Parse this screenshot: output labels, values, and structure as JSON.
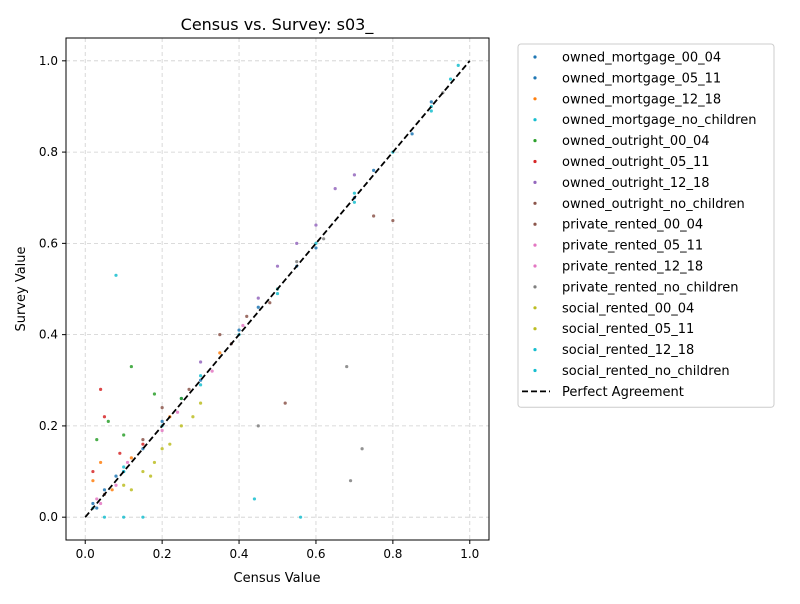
{
  "chart_data": {
    "type": "scatter",
    "title": "Census vs. Survey: s03_",
    "xlabel": "Census Value",
    "ylabel": "Survey Value",
    "xlim": [
      -0.05,
      1.05
    ],
    "ylim": [
      -0.05,
      1.05
    ],
    "x_ticks": [
      0.0,
      0.2,
      0.4,
      0.6,
      0.8,
      1.0
    ],
    "y_ticks": [
      0.0,
      0.2,
      0.4,
      0.6,
      0.8,
      1.0
    ],
    "x_tick_labels": [
      "0.0",
      "0.2",
      "0.4",
      "0.6",
      "0.8",
      "1.0"
    ],
    "y_tick_labels": [
      "0.0",
      "0.2",
      "0.4",
      "0.6",
      "0.8",
      "1.0"
    ],
    "grid": true,
    "legend_position": "outside-right",
    "series": [
      {
        "name": "owned_mortgage_00_04",
        "color": "#1f77b4",
        "points": [
          [
            0.02,
            0.03
          ],
          [
            0.05,
            0.06
          ],
          [
            0.1,
            0.1
          ],
          [
            0.2,
            0.21
          ],
          [
            0.3,
            0.3
          ],
          [
            0.45,
            0.46
          ],
          [
            0.6,
            0.59
          ],
          [
            0.75,
            0.76
          ],
          [
            0.9,
            0.91
          ]
        ]
      },
      {
        "name": "owned_mortgage_05_11",
        "color": "#1f77b4",
        "points": [
          [
            0.03,
            0.02
          ],
          [
            0.08,
            0.09
          ],
          [
            0.15,
            0.15
          ],
          [
            0.25,
            0.26
          ],
          [
            0.4,
            0.41
          ],
          [
            0.55,
            0.55
          ],
          [
            0.7,
            0.7
          ],
          [
            0.85,
            0.84
          ]
        ]
      },
      {
        "name": "owned_mortgage_12_18",
        "color": "#ff7f0e",
        "points": [
          [
            0.02,
            0.08
          ],
          [
            0.04,
            0.12
          ],
          [
            0.07,
            0.06
          ],
          [
            0.12,
            0.13
          ],
          [
            0.22,
            0.22
          ],
          [
            0.35,
            0.36
          ],
          [
            0.5,
            0.5
          ]
        ]
      },
      {
        "name": "owned_mortgage_no_children",
        "color": "#17becf",
        "points": [
          [
            0.1,
            0.11
          ],
          [
            0.3,
            0.31
          ],
          [
            0.5,
            0.49
          ],
          [
            0.7,
            0.71
          ],
          [
            0.9,
            0.9
          ],
          [
            0.95,
            0.96
          ]
        ]
      },
      {
        "name": "owned_outright_00_04",
        "color": "#2ca02c",
        "points": [
          [
            0.03,
            0.17
          ],
          [
            0.06,
            0.21
          ],
          [
            0.1,
            0.18
          ],
          [
            0.18,
            0.27
          ],
          [
            0.12,
            0.33
          ],
          [
            0.25,
            0.26
          ]
        ]
      },
      {
        "name": "owned_outright_05_11",
        "color": "#d62728",
        "points": [
          [
            0.02,
            0.1
          ],
          [
            0.05,
            0.22
          ],
          [
            0.09,
            0.14
          ],
          [
            0.15,
            0.16
          ],
          [
            0.04,
            0.28
          ]
        ]
      },
      {
        "name": "owned_outright_12_18",
        "color": "#9467bd",
        "points": [
          [
            0.3,
            0.34
          ],
          [
            0.45,
            0.48
          ],
          [
            0.5,
            0.55
          ],
          [
            0.6,
            0.64
          ],
          [
            0.65,
            0.72
          ],
          [
            0.7,
            0.75
          ],
          [
            0.55,
            0.6
          ]
        ]
      },
      {
        "name": "owned_outright_no_children",
        "color": "#8c564b",
        "points": [
          [
            0.2,
            0.24
          ],
          [
            0.35,
            0.4
          ],
          [
            0.42,
            0.44
          ],
          [
            0.8,
            0.65
          ],
          [
            0.75,
            0.66
          ],
          [
            0.52,
            0.25
          ]
        ]
      },
      {
        "name": "private_rented_00_04",
        "color": "#8c564b",
        "points": [
          [
            0.05,
            0.05
          ],
          [
            0.15,
            0.17
          ],
          [
            0.27,
            0.28
          ],
          [
            0.38,
            0.38
          ],
          [
            0.48,
            0.47
          ]
        ]
      },
      {
        "name": "private_rented_05_11",
        "color": "#e377c2",
        "points": [
          [
            0.03,
            0.04
          ],
          [
            0.08,
            0.07
          ],
          [
            0.2,
            0.19
          ],
          [
            0.33,
            0.32
          ]
        ]
      },
      {
        "name": "private_rented_12_18",
        "color": "#e377c2",
        "points": [
          [
            0.04,
            0.03
          ],
          [
            0.11,
            0.12
          ],
          [
            0.24,
            0.23
          ],
          [
            0.41,
            0.42
          ]
        ]
      },
      {
        "name": "private_rented_no_children",
        "color": "#7f7f7f",
        "points": [
          [
            0.55,
            0.56
          ],
          [
            0.62,
            0.61
          ],
          [
            0.68,
            0.33
          ],
          [
            0.45,
            0.2
          ],
          [
            0.72,
            0.15
          ],
          [
            0.69,
            0.08
          ],
          [
            0.93,
            0.93
          ]
        ]
      },
      {
        "name": "social_rented_00_04",
        "color": "#bcbd22",
        "points": [
          [
            0.1,
            0.07
          ],
          [
            0.15,
            0.1
          ],
          [
            0.2,
            0.15
          ],
          [
            0.25,
            0.2
          ],
          [
            0.18,
            0.12
          ],
          [
            0.28,
            0.22
          ]
        ]
      },
      {
        "name": "social_rented_05_11",
        "color": "#bcbd22",
        "points": [
          [
            0.12,
            0.06
          ],
          [
            0.17,
            0.09
          ],
          [
            0.22,
            0.16
          ],
          [
            0.3,
            0.25
          ]
        ]
      },
      {
        "name": "social_rented_12_18",
        "color": "#17becf",
        "points": [
          [
            0.05,
            0.0
          ],
          [
            0.1,
            0.0
          ],
          [
            0.15,
            0.0
          ],
          [
            0.08,
            0.53
          ],
          [
            0.44,
            0.04
          ],
          [
            0.56,
            0.0
          ]
        ]
      },
      {
        "name": "social_rented_no_children",
        "color": "#17becf",
        "points": [
          [
            0.02,
            0.02
          ],
          [
            0.1,
            0.1
          ],
          [
            0.2,
            0.2
          ],
          [
            0.3,
            0.29
          ],
          [
            0.4,
            0.4
          ],
          [
            0.5,
            0.5
          ],
          [
            0.6,
            0.6
          ],
          [
            0.7,
            0.69
          ],
          [
            0.8,
            0.8
          ],
          [
            0.9,
            0.89
          ],
          [
            0.97,
            0.99
          ]
        ]
      }
    ],
    "reference_line": {
      "name": "Perfect Agreement",
      "color": "#000000",
      "style": "dashed",
      "points": [
        [
          0.0,
          0.0
        ],
        [
          1.0,
          1.0
        ]
      ]
    }
  }
}
